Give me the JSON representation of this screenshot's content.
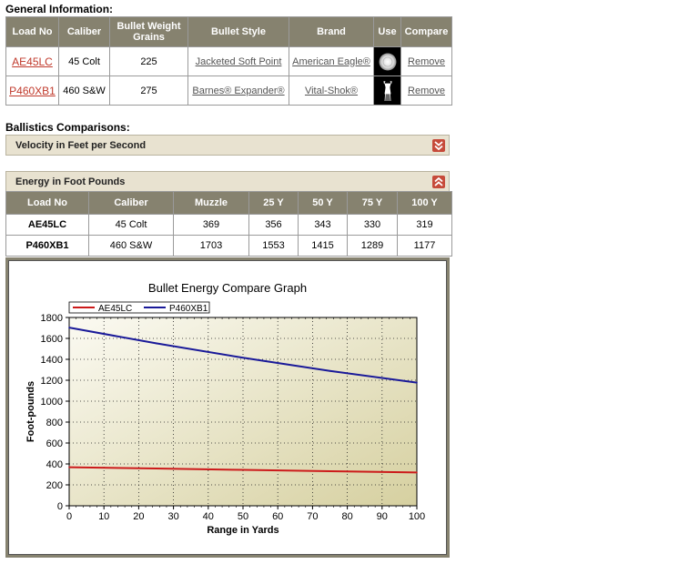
{
  "general": {
    "title": "General Information:",
    "headers": [
      "Load No",
      "Caliber",
      "Bullet Weight Grains",
      "Bullet Style",
      "Brand",
      "Use",
      "Compare"
    ],
    "rows": [
      {
        "load_no": "AE45LC",
        "caliber": "45 Colt",
        "weight": "225",
        "style": "Jacketed Soft Point",
        "brand": "American Eagle®",
        "use_icon": "target-icon",
        "compare": "Remove"
      },
      {
        "load_no": "P460XB1",
        "caliber": "460 S&W",
        "weight": "275",
        "style": "Barnes® Expander®",
        "brand": "Vital-Shok®",
        "use_icon": "deer-icon",
        "compare": "Remove"
      }
    ]
  },
  "ballistics": {
    "title": "Ballistics Comparisons:",
    "velocity_panel": {
      "label": "Velocity in Feet per Second",
      "state": "collapsed"
    },
    "energy_panel": {
      "label": "Energy in Foot Pounds",
      "state": "expanded"
    }
  },
  "energy_table": {
    "headers": [
      "Load No",
      "Caliber",
      "Muzzle",
      "25 Y",
      "50 Y",
      "75 Y",
      "100 Y"
    ],
    "rows": [
      {
        "load_no": "AE45LC",
        "caliber": "45 Colt",
        "values": [
          "369",
          "356",
          "343",
          "330",
          "319"
        ]
      },
      {
        "load_no": "P460XB1",
        "caliber": "460 S&W",
        "values": [
          "1703",
          "1553",
          "1415",
          "1289",
          "1177"
        ]
      }
    ]
  },
  "chart_data": {
    "type": "line",
    "title": "Bullet Energy Compare Graph",
    "xlabel": "Range in Yards",
    "ylabel": "Foot-pounds",
    "xlim": [
      0,
      100
    ],
    "ylim": [
      0,
      1800
    ],
    "x_ticks": [
      0,
      10,
      20,
      30,
      40,
      50,
      60,
      70,
      80,
      90,
      100
    ],
    "y_ticks": [
      0,
      200,
      400,
      600,
      800,
      1000,
      1200,
      1400,
      1600,
      1800
    ],
    "grid": true,
    "legend": "top-left",
    "x": [
      0,
      25,
      50,
      75,
      100
    ],
    "series": [
      {
        "name": "AE45LC",
        "color": "#cc1a1a",
        "values": [
          369,
          356,
          343,
          330,
          319
        ]
      },
      {
        "name": "P460XB1",
        "color": "#1a1a99",
        "values": [
          1703,
          1553,
          1415,
          1289,
          1177
        ]
      }
    ]
  },
  "colors": {
    "header_bg": "#86826f",
    "panel_bg": "#e8e2d0",
    "toggle_red": "#c64a3a",
    "link_red": "#c0392b"
  }
}
